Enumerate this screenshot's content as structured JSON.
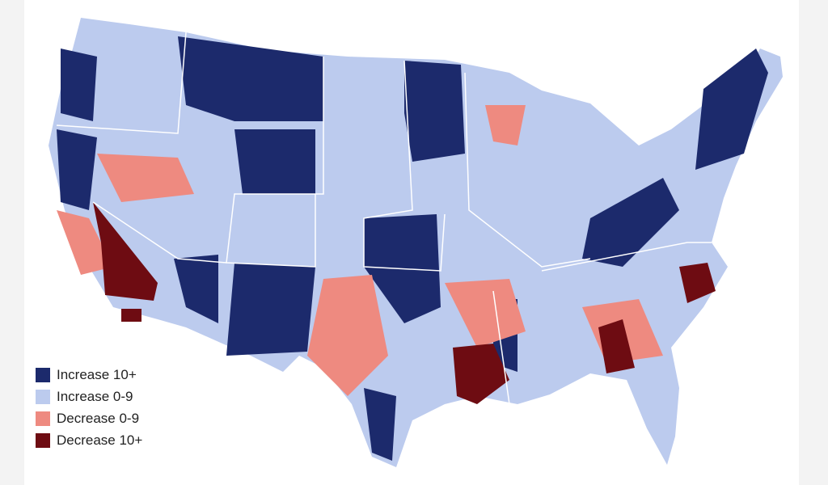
{
  "legend": {
    "items": [
      {
        "label": "Increase 10+",
        "color": "#1c2a6c"
      },
      {
        "label": "Increase 0-9",
        "color": "#bccbee"
      },
      {
        "label": "Decrease 0-9",
        "color": "#ee8a80"
      },
      {
        "label": "Decrease 10+",
        "color": "#6e0c12"
      }
    ]
  }
}
